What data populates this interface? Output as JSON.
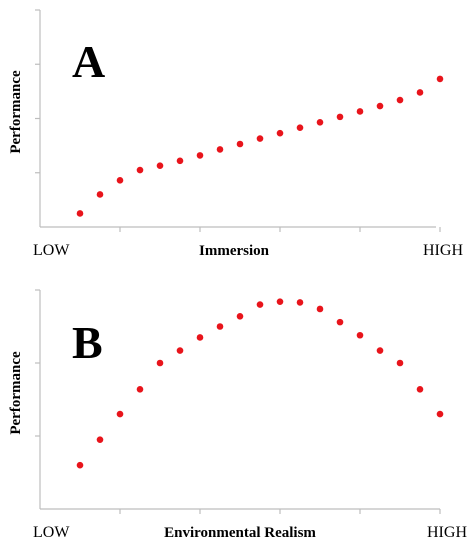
{
  "chart_data": [
    {
      "type": "scatter",
      "panel_label": "A",
      "xlabel": "Immersion",
      "ylabel": "Performance",
      "x_low_label": "LOW",
      "x_high_label": "HIGH",
      "grid": false,
      "legend": "none",
      "marker_color": "#e8141b",
      "xlim": [
        0,
        20
      ],
      "ylim": [
        0,
        4
      ],
      "x": [
        2,
        3,
        4,
        5,
        6,
        7,
        8,
        9,
        10,
        11,
        12,
        13,
        14,
        15,
        16,
        17,
        18,
        19,
        20
      ],
      "y": [
        0.25,
        0.6,
        0.86,
        1.05,
        1.13,
        1.22,
        1.32,
        1.43,
        1.53,
        1.63,
        1.73,
        1.83,
        1.93,
        2.03,
        2.13,
        2.23,
        2.34,
        2.48,
        2.73
      ]
    },
    {
      "type": "scatter",
      "panel_label": "B",
      "xlabel": "Environmental Realism",
      "ylabel": "Performance",
      "x_low_label": "LOW",
      "x_high_label": "HIGH",
      "grid": false,
      "legend": "none",
      "marker_color": "#e8141b",
      "xlim": [
        0,
        20
      ],
      "ylim": [
        0,
        3
      ],
      "x": [
        2,
        3,
        4,
        5,
        6,
        7,
        8,
        9,
        10,
        11,
        12,
        13,
        14,
        15,
        16,
        17,
        18,
        19,
        20
      ],
      "y": [
        0.6,
        0.95,
        1.3,
        1.64,
        2.0,
        2.17,
        2.35,
        2.5,
        2.64,
        2.8,
        2.84,
        2.83,
        2.74,
        2.56,
        2.38,
        2.17,
        2.0,
        1.64,
        1.3
      ]
    }
  ]
}
